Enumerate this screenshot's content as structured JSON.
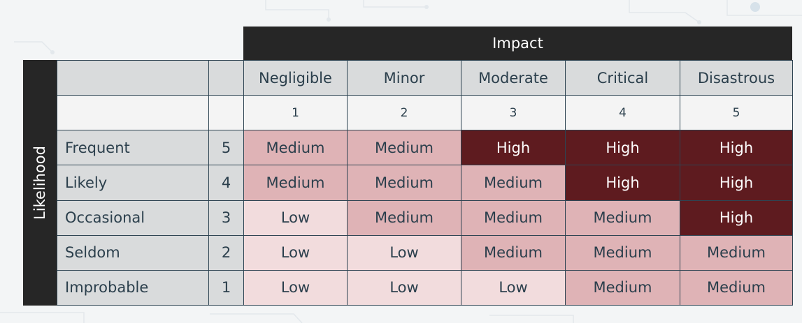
{
  "headers": {
    "impact": "Impact",
    "likelihood": "Likelihood"
  },
  "columns": [
    {
      "label": "Negligible",
      "score": "1"
    },
    {
      "label": "Minor",
      "score": "2"
    },
    {
      "label": "Moderate",
      "score": "3"
    },
    {
      "label": "Critical",
      "score": "4"
    },
    {
      "label": "Disastrous",
      "score": "5"
    }
  ],
  "rows": [
    {
      "label": "Frequent",
      "score": "5",
      "cells": [
        "Medium",
        "Medium",
        "High",
        "High",
        "High"
      ]
    },
    {
      "label": "Likely",
      "score": "4",
      "cells": [
        "Medium",
        "Medium",
        "Medium",
        "High",
        "High"
      ]
    },
    {
      "label": "Occasional",
      "score": "3",
      "cells": [
        "Low",
        "Medium",
        "Medium",
        "Medium",
        "High"
      ]
    },
    {
      "label": "Seldom",
      "score": "2",
      "cells": [
        "Low",
        "Low",
        "Medium",
        "Medium",
        "Medium"
      ]
    },
    {
      "label": "Improbable",
      "score": "1",
      "cells": [
        "Low",
        "Low",
        "Low",
        "Medium",
        "Medium"
      ]
    }
  ],
  "level_colors": {
    "Low": "#f2dcdd",
    "Medium": "#dfb3b6",
    "High": "#5e1b1f"
  }
}
